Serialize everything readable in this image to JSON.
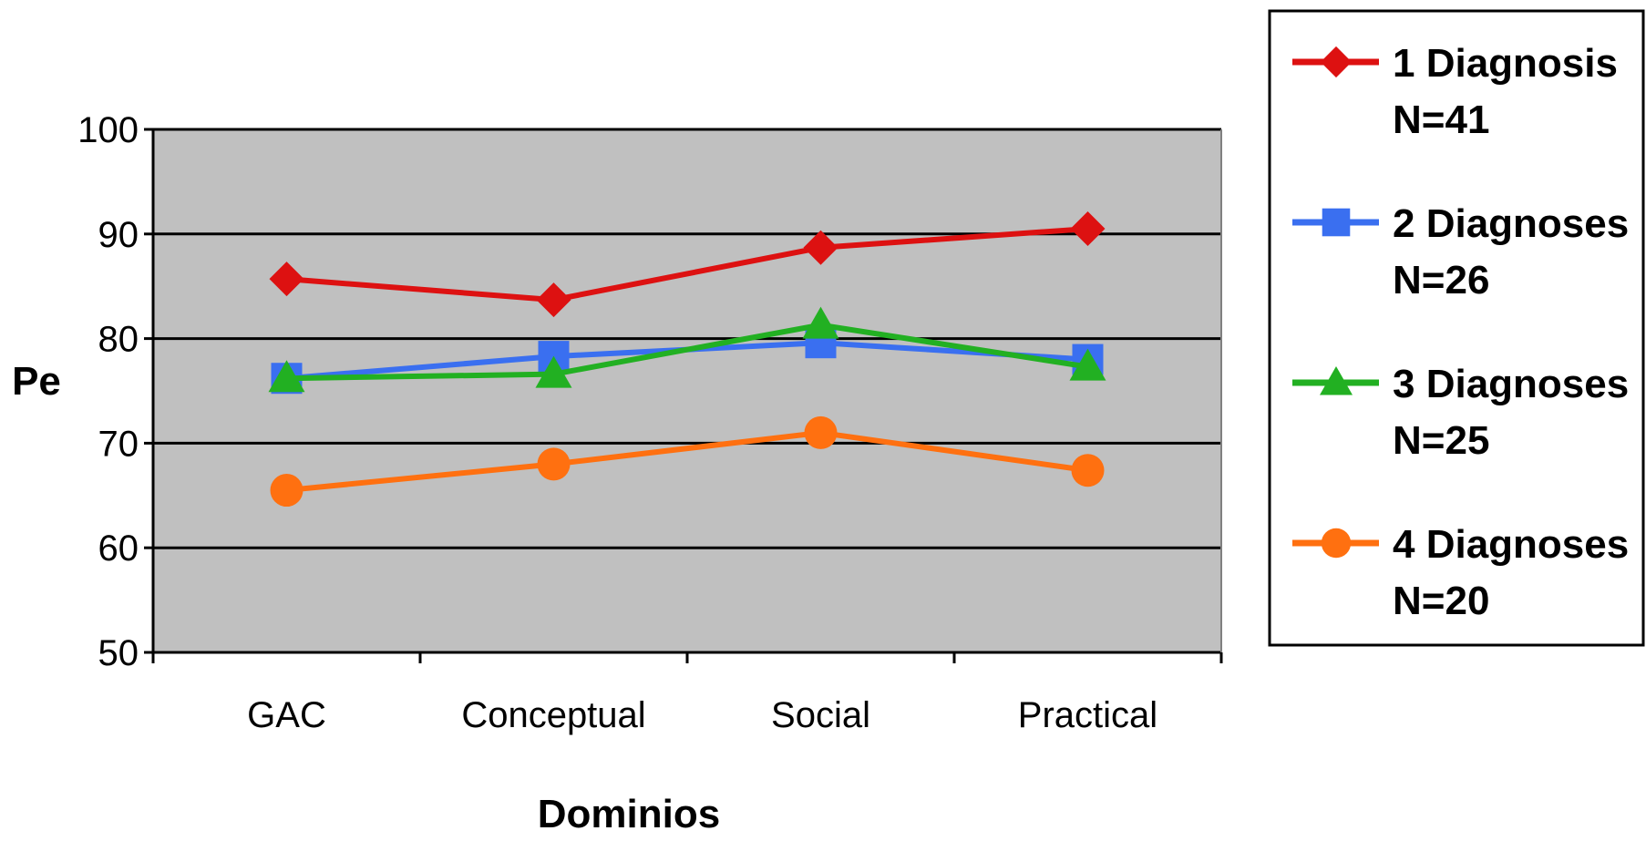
{
  "chart_data": {
    "type": "line",
    "categories": [
      "GAC",
      "Conceptual",
      "Social",
      "Practical"
    ],
    "xlabel": "Dominios",
    "ylabel": "Pe",
    "ylim": [
      50,
      100
    ],
    "yticks": [
      50,
      60,
      70,
      80,
      90,
      100
    ],
    "grid": true,
    "plot_background": "#c0c0c0",
    "legend_position": "right",
    "series": [
      {
        "name": "1 Diagnosis",
        "sublabel": "N=41",
        "color": "#dd1111",
        "marker": "diamond",
        "values": [
          85.7,
          83.7,
          88.7,
          90.5
        ]
      },
      {
        "name": "2 Diagnoses",
        "sublabel": "N=26",
        "color": "#3a6ff0",
        "marker": "square",
        "values": [
          76.2,
          78.3,
          79.6,
          78.0
        ]
      },
      {
        "name": "3 Diagnoses",
        "sublabel": "N=25",
        "color": "#22b022",
        "marker": "triangle",
        "values": [
          76.2,
          76.6,
          81.3,
          77.3
        ]
      },
      {
        "name": "4 Diagnoses",
        "sublabel": "N=20",
        "color": "#ff7010",
        "marker": "circle",
        "values": [
          65.5,
          68.0,
          71.0,
          67.4
        ]
      }
    ]
  }
}
